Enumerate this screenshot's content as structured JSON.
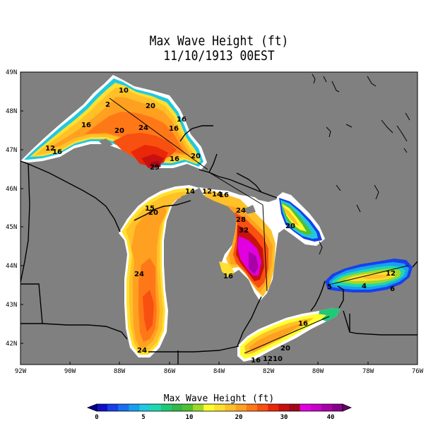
{
  "title_line1": "Max Wave Height (ft)",
  "title_line2": "11/10/1913 00EST",
  "lat_labels": [
    "49N",
    "48N",
    "47N",
    "46N",
    "45N",
    "44N",
    "43N",
    "42N"
  ],
  "lon_labels": [
    "92W",
    "90W",
    "88W",
    "86W",
    "84W",
    "82W",
    "80W",
    "78W",
    "76W"
  ],
  "colorbar": {
    "title": "Max Wave Height (ft)",
    "tick_labels": [
      "0",
      "5",
      "10",
      "20",
      "30",
      "40"
    ],
    "colors": [
      "#1010c8",
      "#1840e8",
      "#1870f0",
      "#18a0f0",
      "#20c8e0",
      "#20d8b0",
      "#20c878",
      "#30b848",
      "#50c030",
      "#a0d828",
      "#ffff30",
      "#ffe030",
      "#ffc028",
      "#ffa020",
      "#ff7818",
      "#f85010",
      "#e82808",
      "#c81010",
      "#a00818",
      "#e000e0",
      "#c800c8",
      "#a800a8",
      "#880088"
    ]
  },
  "colors": {
    "land": "#808080",
    "frame": "#000000"
  },
  "contour_labels": [
    "10",
    "2",
    "20",
    "16",
    "16",
    "20",
    "24",
    "16",
    "20",
    "12",
    "16",
    "29",
    "16",
    "12",
    "14",
    "16",
    "24",
    "28",
    "32",
    "20",
    "15",
    "20",
    "14",
    "16",
    "24",
    "24",
    "12",
    "5",
    "4",
    "6",
    "16",
    "20",
    "16",
    "12",
    "10"
  ]
}
